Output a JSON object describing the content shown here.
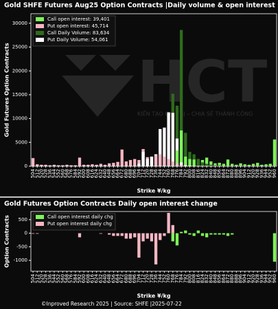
{
  "chart_data": [
    {
      "type": "bar",
      "title": "Gold SHFE Futures Aug25 Option Contracts |Daily volume & open interest",
      "x_label": "Strike ¥/kg",
      "y_label": "Gold  Futures Option Contracts",
      "categories": [
        "504",
        "512",
        "520",
        "528",
        "536",
        "544",
        "552",
        "560",
        "568",
        "576",
        "584",
        "592",
        "600",
        "608",
        "616",
        "624",
        "632",
        "640",
        "648",
        "656",
        "664",
        "672",
        "680",
        "688",
        "696",
        "704",
        "712",
        "720",
        "728",
        "736",
        "744",
        "752",
        "760",
        "768",
        "776",
        "784",
        "792",
        "800",
        "808",
        "816",
        "824",
        "832",
        "840",
        "848",
        "856",
        "864",
        "872",
        "880",
        "888",
        "896",
        "904",
        "912",
        "920",
        "928",
        "936",
        "944",
        "952",
        "960"
      ],
      "series": [
        {
          "name": "Call open interest: 39,401",
          "color": "#7ef35a",
          "values": [
            0,
            0,
            0,
            0,
            0,
            0,
            0,
            0,
            0,
            0,
            0,
            0,
            0,
            0,
            0,
            0,
            0,
            0,
            0,
            0,
            0,
            0,
            0,
            0,
            0,
            0,
            0,
            0,
            0,
            0,
            0,
            0,
            0,
            100,
            3300,
            7500,
            2000,
            1500,
            1400,
            1500,
            1300,
            1800,
            1000,
            600,
            700,
            500,
            1400,
            500,
            300,
            600,
            400,
            300,
            500,
            700,
            300,
            400,
            500,
            5600
          ]
        },
        {
          "name": "Put open interest: 45,714",
          "color": "#f4b6c2",
          "values": [
            1700,
            400,
            300,
            300,
            200,
            300,
            200,
            200,
            300,
            200,
            200,
            1800,
            300,
            300,
            400,
            300,
            500,
            300,
            600,
            700,
            900,
            3500,
            1000,
            1300,
            1500,
            1300,
            3600,
            1900,
            2000,
            2300,
            2500,
            2000,
            1500,
            1000,
            600,
            300,
            200,
            100,
            100,
            50,
            50,
            50,
            30,
            30,
            20,
            20,
            20,
            20,
            20,
            10,
            10,
            10,
            10,
            10,
            10,
            10,
            10,
            10
          ]
        },
        {
          "name": "Call Daily Volume: 83,634",
          "color": "#2e6b1e",
          "values": [
            0,
            0,
            0,
            0,
            0,
            0,
            0,
            0,
            0,
            0,
            0,
            0,
            0,
            0,
            0,
            0,
            0,
            0,
            0,
            0,
            0,
            0,
            0,
            0,
            0,
            0,
            0,
            0,
            0,
            0,
            0,
            0,
            0,
            15200,
            12700,
            28600,
            7000,
            3000,
            2500,
            1500,
            800,
            500,
            300,
            200,
            200,
            100,
            100,
            100,
            100,
            100,
            100,
            100,
            100,
            100,
            100,
            100,
            100,
            100
          ]
        },
        {
          "name": "Put Daily Volume: 54,061",
          "color": "#ffffff",
          "values": [
            0,
            0,
            0,
            0,
            0,
            0,
            0,
            0,
            0,
            0,
            0,
            0,
            0,
            0,
            0,
            0,
            0,
            0,
            0,
            0,
            0,
            0,
            0,
            0,
            0,
            500,
            3000,
            1500,
            2000,
            2500,
            7800,
            8100,
            11300,
            11200,
            5800,
            800,
            200,
            100,
            0,
            0,
            0,
            0,
            0,
            0,
            0,
            0,
            0,
            0,
            0,
            0,
            0,
            0,
            0,
            0,
            0,
            0,
            0,
            0
          ]
        }
      ],
      "ylim": [
        0,
        32000
      ],
      "yticks": [
        0,
        5000,
        10000,
        15000,
        20000,
        25000,
        30000
      ],
      "legend": "upper-left"
    },
    {
      "type": "bar",
      "title": "Gold  Futures Option Contracts Daily open interest change",
      "x_label": "Strike ¥/kg",
      "y_label": "Option Contracts",
      "categories": [
        "504",
        "512",
        "520",
        "528",
        "536",
        "544",
        "552",
        "560",
        "568",
        "576",
        "584",
        "592",
        "600",
        "608",
        "616",
        "624",
        "632",
        "640",
        "648",
        "656",
        "664",
        "672",
        "680",
        "688",
        "696",
        "704",
        "712",
        "720",
        "728",
        "736",
        "744",
        "752",
        "760",
        "768",
        "776",
        "784",
        "792",
        "800",
        "808",
        "816",
        "824",
        "832",
        "840",
        "848",
        "856",
        "864",
        "872",
        "880",
        "888",
        "896",
        "904",
        "912",
        "920",
        "928",
        "936",
        "944",
        "952",
        "960"
      ],
      "series": [
        {
          "name": "Call open interest daily chg",
          "color": "#7ef35a",
          "values": [
            0,
            0,
            0,
            0,
            0,
            0,
            0,
            0,
            0,
            0,
            0,
            0,
            0,
            0,
            0,
            0,
            0,
            0,
            0,
            0,
            0,
            0,
            0,
            0,
            0,
            0,
            0,
            0,
            0,
            0,
            0,
            0,
            0,
            -300,
            -450,
            50,
            100,
            -50,
            -100,
            100,
            -100,
            -150,
            -50,
            -50,
            -50,
            -50,
            -100,
            -50,
            0,
            0,
            0,
            0,
            0,
            0,
            0,
            0,
            0,
            -1050
          ]
        },
        {
          "name": "Put open interest daily chg",
          "color": "#f4b6c2",
          "values": [
            -20,
            -20,
            0,
            0,
            0,
            0,
            0,
            0,
            0,
            0,
            0,
            -150,
            0,
            0,
            0,
            0,
            -20,
            0,
            -50,
            -100,
            -100,
            -100,
            -200,
            -200,
            -150,
            -900,
            -300,
            -200,
            -300,
            -1150,
            -250,
            -100,
            750,
            300,
            0,
            0,
            0,
            0,
            0,
            0,
            0,
            0,
            0,
            0,
            0,
            0,
            0,
            0,
            0,
            0,
            0,
            0,
            0,
            0,
            0,
            0,
            0,
            0
          ]
        }
      ],
      "ylim": [
        -1400,
        800
      ],
      "yticks": [
        -1000,
        -500,
        0,
        500
      ],
      "legend": "upper-left"
    }
  ],
  "watermark": {
    "logo": "HCT",
    "slogan": "KIẾN TẠO GIÁ TRỊ – CHIA SẺ THÀNH CÔNG"
  },
  "footer": "©Inproved Research 2025 | Source: SHFE |2025-07-22"
}
